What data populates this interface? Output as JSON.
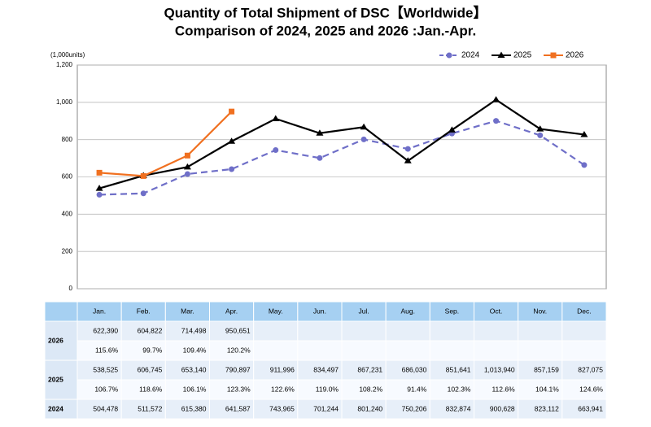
{
  "chart_data": {
    "type": "line",
    "title": "Quantity of Total Shipment of DSC【Worldwide】",
    "subtitle": "Comparison of 2024, 2025 and 2026 :Jan.-Apr.",
    "y_unit_label": "(1,000units)",
    "categories": [
      "Jan.",
      "Feb.",
      "Mar.",
      "Apr.",
      "May.",
      "Jun.",
      "Jul.",
      "Aug.",
      "Sep.",
      "Oct.",
      "Nov.",
      "Dec."
    ],
    "ylim": [
      0,
      1200
    ],
    "yticks": [
      0,
      200,
      400,
      600,
      800,
      {
        "value": 1000,
        "label": "1,000"
      },
      {
        "value": 1200,
        "label": "1,200"
      }
    ],
    "grid": true,
    "legend": "top-right",
    "series": [
      {
        "name": "2024",
        "color": "#6f6fc8",
        "dashed": true,
        "marker": "circle",
        "values": [
          504.478,
          511.572,
          615.38,
          641.587,
          743.965,
          701.244,
          801.24,
          750.206,
          832.874,
          900.628,
          823.112,
          663.941
        ],
        "value_labels": [
          "504,478",
          "511,572",
          "615,380",
          "641,587",
          "743,965",
          "701,244",
          "801,240",
          "750,206",
          "832,874",
          "900,628",
          "823,112",
          "663,941"
        ]
      },
      {
        "name": "2025",
        "color": "#000000",
        "dashed": false,
        "marker": "triangle",
        "values": [
          538.525,
          606.745,
          653.14,
          790.897,
          911.996,
          834.497,
          867.231,
          686.03,
          851.641,
          1013.94,
          857.159,
          827.075
        ],
        "value_labels": [
          "538,525",
          "606,745",
          "653,140",
          "790,897",
          "911,996",
          "834,497",
          "867,231",
          "686,030",
          "851,641",
          "1,013,940",
          "857,159",
          "827,075"
        ],
        "ratios": [
          "106.7%",
          "118.6%",
          "106.1%",
          "123.3%",
          "122.6%",
          "119.0%",
          "108.2%",
          "91.4%",
          "102.3%",
          "112.6%",
          "104.1%",
          "124.6%"
        ]
      },
      {
        "name": "2026",
        "color": "#f07020",
        "dashed": false,
        "marker": "square",
        "values": [
          622.39,
          604.822,
          714.498,
          950.651,
          null,
          null,
          null,
          null,
          null,
          null,
          null,
          null
        ],
        "value_labels": [
          "622,390",
          "604,822",
          "714,498",
          "950,651",
          null,
          null,
          null,
          null,
          null,
          null,
          null,
          null
        ],
        "ratios": [
          "115.6%",
          "99.7%",
          "109.4%",
          "120.2%",
          null,
          null,
          null,
          null,
          null,
          null,
          null,
          null
        ]
      }
    ]
  }
}
